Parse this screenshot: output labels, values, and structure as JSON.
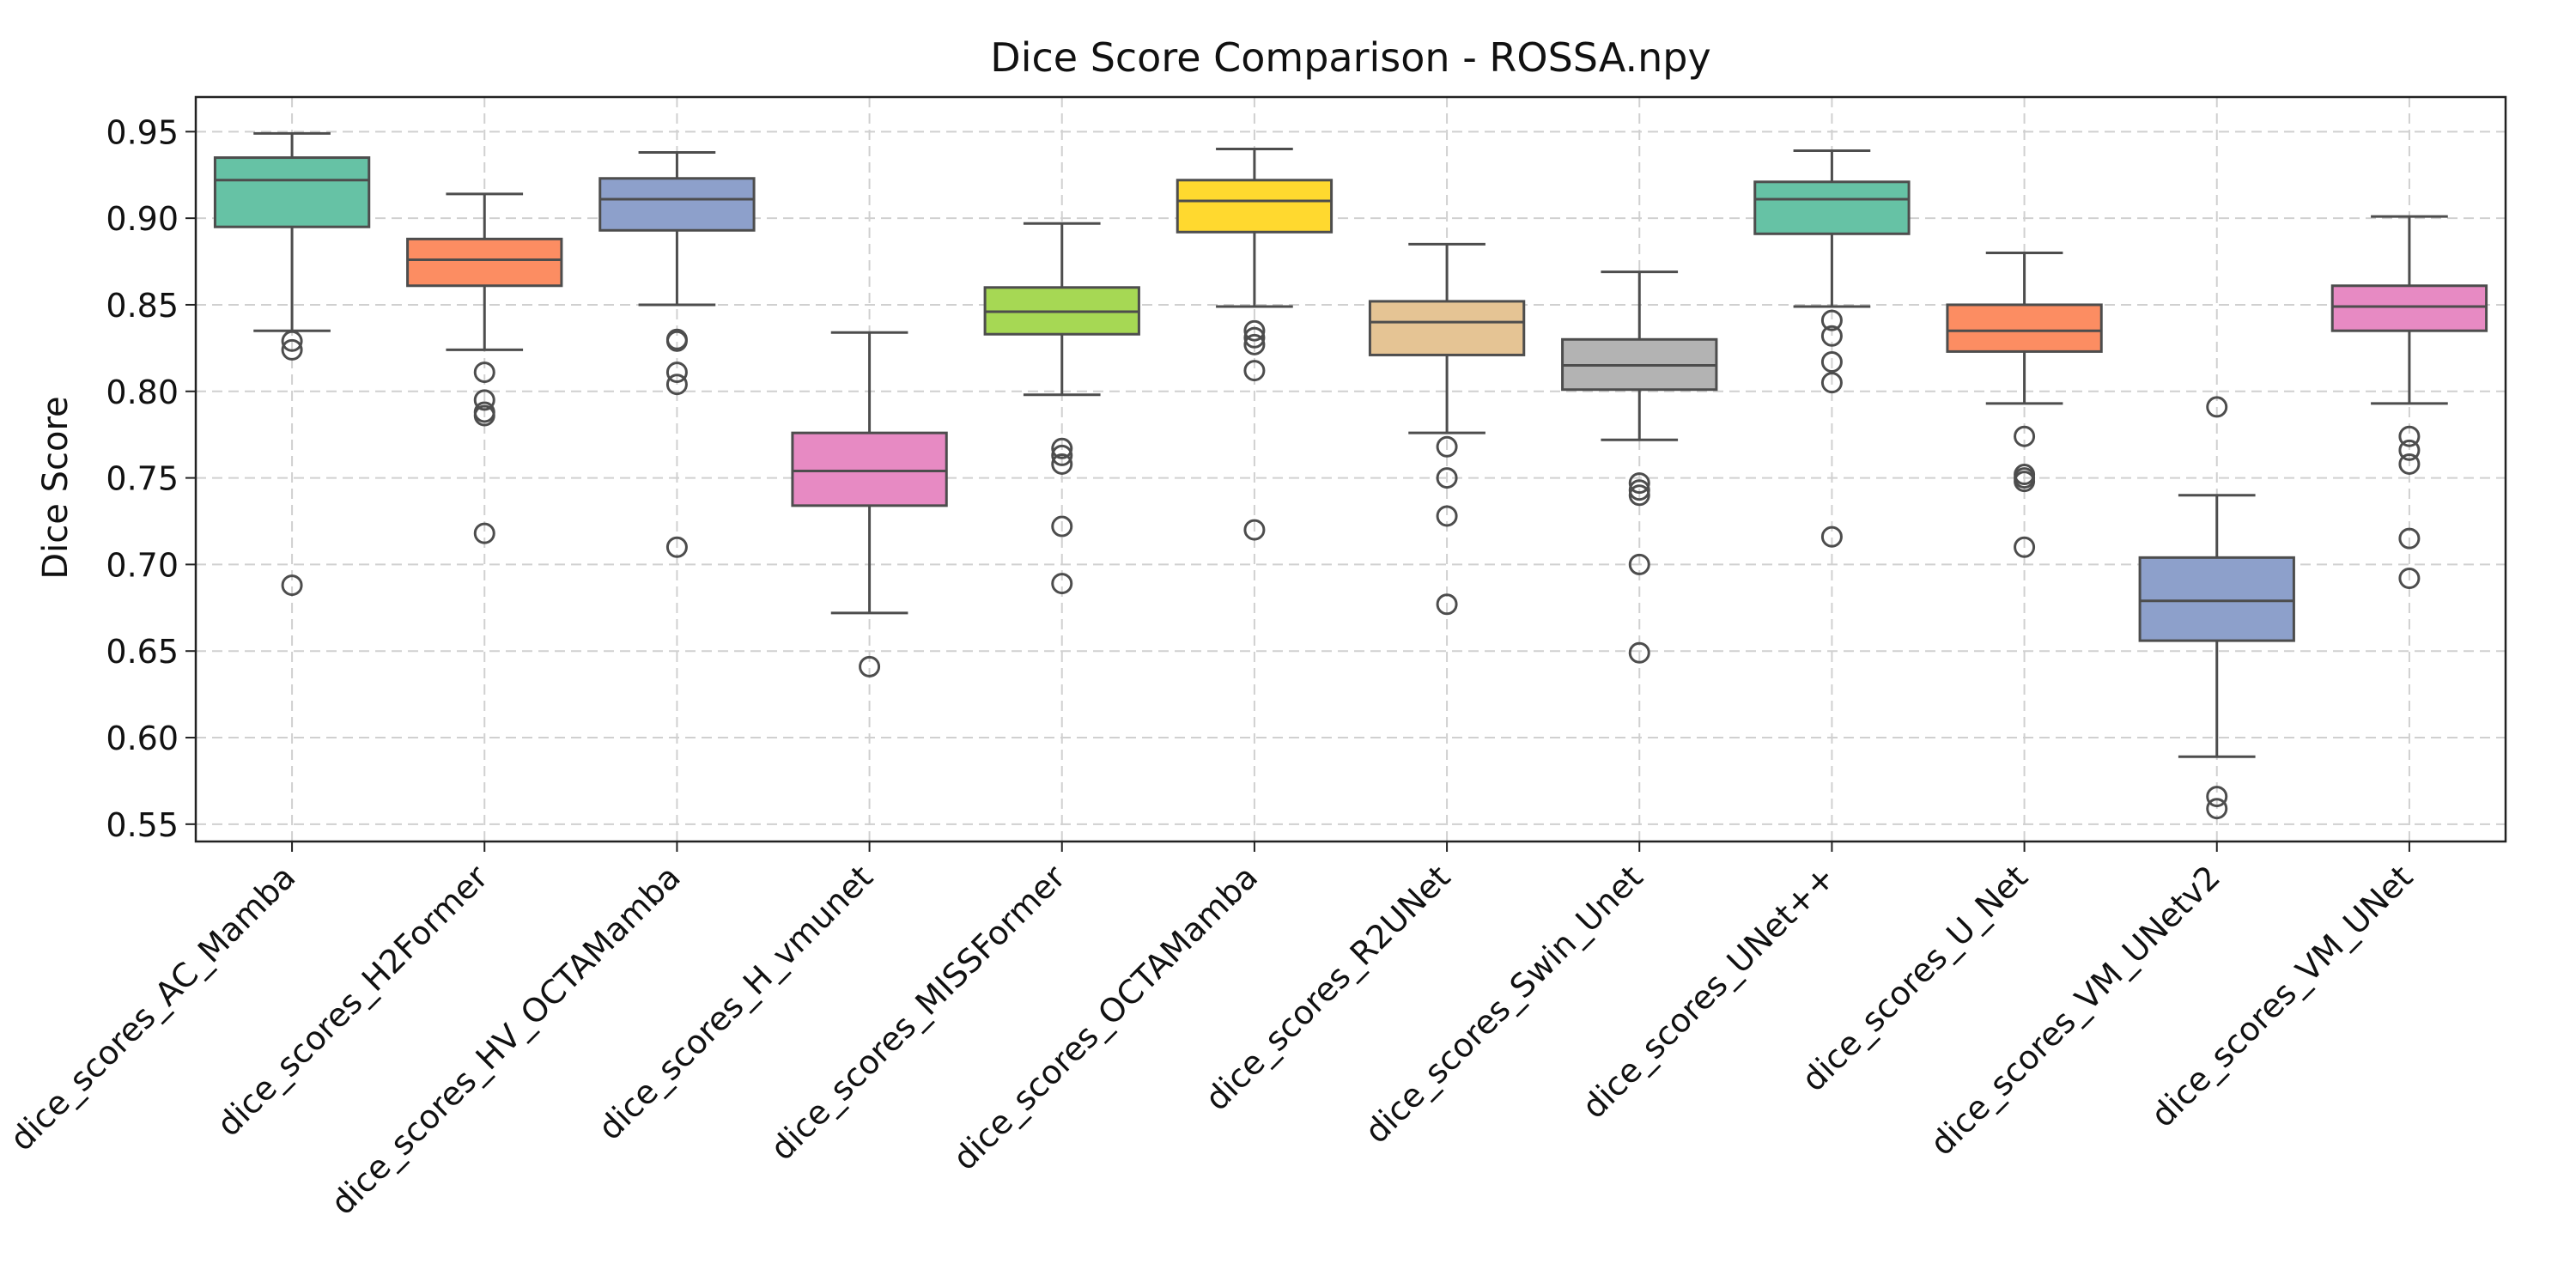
{
  "chart_data": {
    "type": "box",
    "title": "Dice Score Comparison - ROSSA.npy",
    "xlabel": "",
    "ylabel": "Dice Score",
    "ylim": [
      0.54,
      0.97
    ],
    "yticks": [
      "0.55",
      "0.60",
      "0.65",
      "0.70",
      "0.75",
      "0.80",
      "0.85",
      "0.90",
      "0.95"
    ],
    "grid": true,
    "categories": [
      "dice_scores_AC_Mamba",
      "dice_scores_H2Former",
      "dice_scores_HV_OCTAMamba",
      "dice_scores_H_vmunet",
      "dice_scores_MISSFormer",
      "dice_scores_OCTAMamba",
      "dice_scores_R2UNet",
      "dice_scores_Swin_Unet",
      "dice_scores_UNet++",
      "dice_scores_U_Net",
      "dice_scores_VM_UNetv2",
      "dice_scores_VM_UNet"
    ],
    "boxes": [
      {
        "whisker_low": 0.835,
        "q1": 0.895,
        "median": 0.922,
        "q3": 0.935,
        "whisker_high": 0.949,
        "outliers": [
          0.829,
          0.824,
          0.688
        ],
        "color": "#66c2a5"
      },
      {
        "whisker_low": 0.824,
        "q1": 0.861,
        "median": 0.876,
        "q3": 0.888,
        "whisker_high": 0.914,
        "outliers": [
          0.811,
          0.795,
          0.788,
          0.786,
          0.718
        ],
        "color": "#fc8d62"
      },
      {
        "whisker_low": 0.85,
        "q1": 0.893,
        "median": 0.911,
        "q3": 0.923,
        "whisker_high": 0.938,
        "outliers": [
          0.83,
          0.829,
          0.811,
          0.804,
          0.71
        ],
        "color": "#8da0cb"
      },
      {
        "whisker_low": 0.672,
        "q1": 0.734,
        "median": 0.754,
        "q3": 0.776,
        "whisker_high": 0.834,
        "outliers": [
          0.641
        ],
        "color": "#e78ac3"
      },
      {
        "whisker_low": 0.798,
        "q1": 0.833,
        "median": 0.846,
        "q3": 0.86,
        "whisker_high": 0.897,
        "outliers": [
          0.767,
          0.763,
          0.758,
          0.722,
          0.689
        ],
        "color": "#a6d854"
      },
      {
        "whisker_low": 0.849,
        "q1": 0.892,
        "median": 0.91,
        "q3": 0.922,
        "whisker_high": 0.94,
        "outliers": [
          0.835,
          0.831,
          0.827,
          0.812,
          0.72
        ],
        "color": "#ffd92f"
      },
      {
        "whisker_low": 0.776,
        "q1": 0.821,
        "median": 0.84,
        "q3": 0.852,
        "whisker_high": 0.885,
        "outliers": [
          0.768,
          0.75,
          0.728,
          0.677
        ],
        "color": "#e5c494"
      },
      {
        "whisker_low": 0.772,
        "q1": 0.801,
        "median": 0.815,
        "q3": 0.83,
        "whisker_high": 0.869,
        "outliers": [
          0.747,
          0.743,
          0.74,
          0.7,
          0.649
        ],
        "color": "#b3b3b3"
      },
      {
        "whisker_low": 0.849,
        "q1": 0.891,
        "median": 0.911,
        "q3": 0.921,
        "whisker_high": 0.939,
        "outliers": [
          0.841,
          0.832,
          0.817,
          0.805,
          0.716
        ],
        "color": "#66c2a5"
      },
      {
        "whisker_low": 0.793,
        "q1": 0.823,
        "median": 0.835,
        "q3": 0.85,
        "whisker_high": 0.88,
        "outliers": [
          0.774,
          0.752,
          0.75,
          0.748,
          0.71
        ],
        "color": "#fc8d62"
      },
      {
        "whisker_low": 0.589,
        "q1": 0.656,
        "median": 0.679,
        "q3": 0.704,
        "whisker_high": 0.74,
        "outliers": [
          0.791,
          0.566,
          0.559
        ],
        "color": "#8da0cb"
      },
      {
        "whisker_low": 0.793,
        "q1": 0.835,
        "median": 0.849,
        "q3": 0.861,
        "whisker_high": 0.901,
        "outliers": [
          0.774,
          0.766,
          0.758,
          0.715,
          0.692
        ],
        "color": "#e78ac3"
      }
    ]
  }
}
